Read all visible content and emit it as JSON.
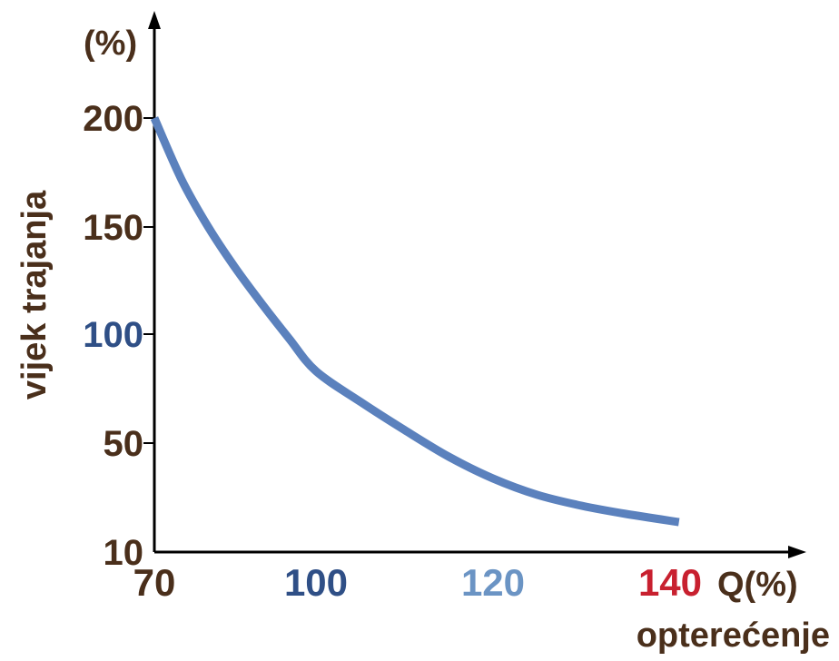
{
  "chart_data": {
    "type": "line",
    "y_unit_label": "(%)",
    "ylabel": "vijek trajanja",
    "x_unit_label": "Q(%)",
    "xlabel": "opterećenje",
    "y_ticks": [
      {
        "label": "200",
        "value": 200,
        "color": "#4a2f1b"
      },
      {
        "label": "150",
        "value": 150,
        "color": "#4a2f1b"
      },
      {
        "label": "100",
        "value": 100,
        "color": "#2f4f86"
      },
      {
        "label": "50",
        "value": 50,
        "color": "#4a2f1b"
      },
      {
        "label": "10",
        "value": 10,
        "color": "#4a2f1b"
      }
    ],
    "x_ticks": [
      {
        "label": "70",
        "value": 70,
        "color": "#4a2f1b"
      },
      {
        "label": "100",
        "value": 100,
        "color": "#2f4f86"
      },
      {
        "label": "120",
        "value": 120,
        "color": "#6b94c4"
      },
      {
        "label": "140",
        "value": 140,
        "color": "#c8202f"
      }
    ],
    "series": [
      {
        "color": "#5b81bd",
        "points": [
          [
            70,
            200
          ],
          [
            75,
            172
          ],
          [
            80,
            150
          ],
          [
            85,
            131
          ],
          [
            90,
            114
          ],
          [
            95,
            98
          ],
          [
            100,
            83
          ],
          [
            105,
            69
          ],
          [
            110,
            56
          ],
          [
            115,
            45
          ],
          [
            120,
            37
          ],
          [
            125,
            31
          ],
          [
            130,
            27
          ],
          [
            135,
            24
          ],
          [
            141,
            21
          ]
        ]
      }
    ]
  }
}
